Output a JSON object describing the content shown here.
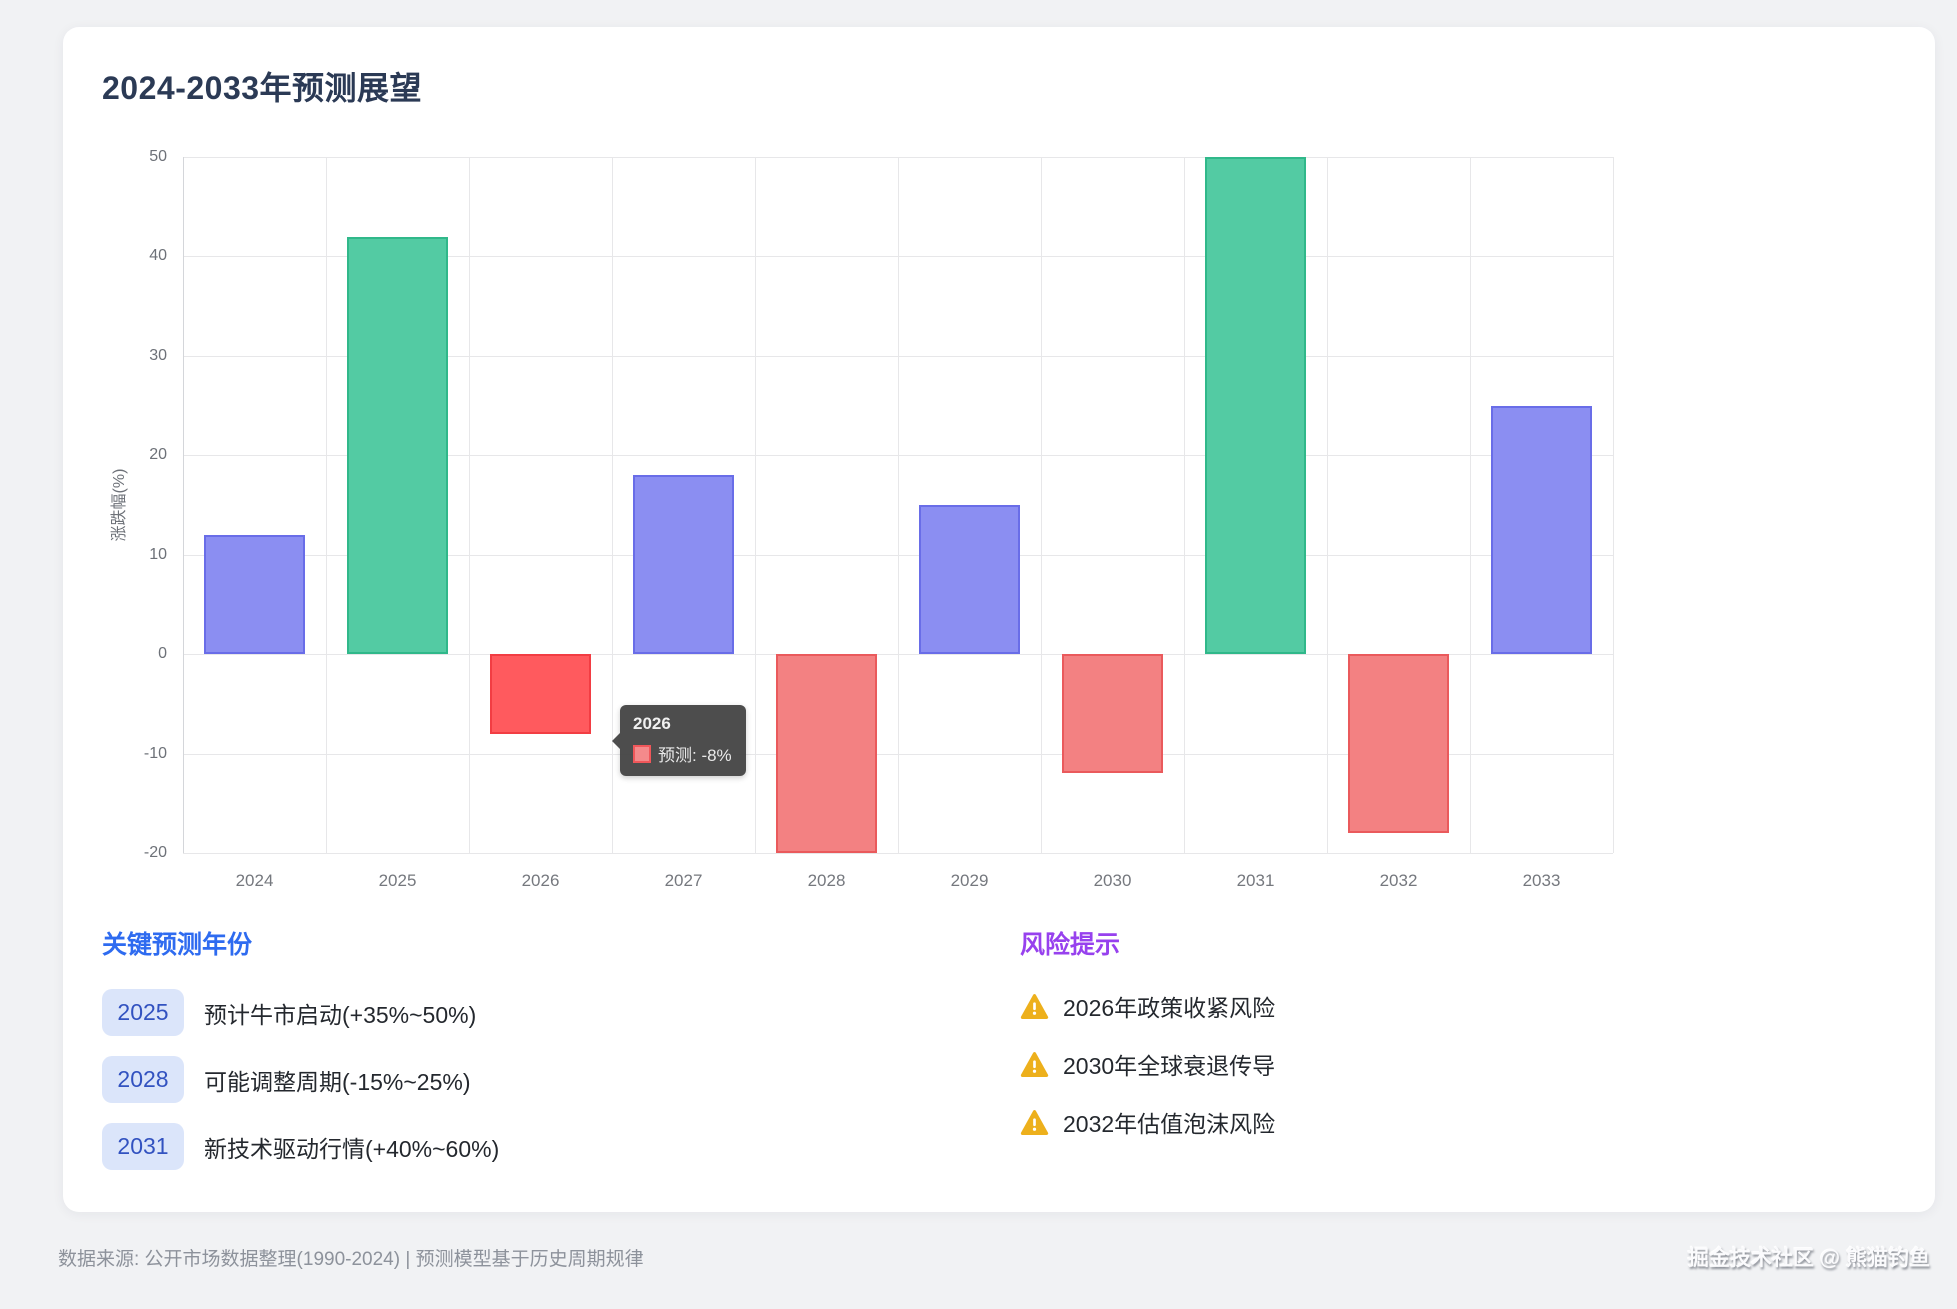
{
  "title": "2024-2033年预测展望",
  "chart_data": {
    "type": "bar",
    "title": "2024-2033年预测展望",
    "categories": [
      "2024",
      "2025",
      "2026",
      "2027",
      "2028",
      "2029",
      "2030",
      "2031",
      "2032",
      "2033"
    ],
    "series": [
      {
        "name": "预测",
        "values": [
          12,
          42,
          -8,
          18,
          -20,
          15,
          -12,
          50,
          -18,
          25
        ]
      }
    ],
    "bar_styles": [
      "purple",
      "green",
      "red_active",
      "purple",
      "red",
      "purple",
      "red",
      "green",
      "red",
      "purple"
    ],
    "xlabel": "",
    "ylabel": "涨跌幅(%)",
    "ylim": [
      -20,
      50
    ],
    "yticks": [
      50,
      40,
      30,
      20,
      10,
      0,
      -10,
      -20
    ],
    "grid": true,
    "legend": "none"
  },
  "tooltip": {
    "title": "2026",
    "series": "预测",
    "value_label": "预测: -8%"
  },
  "key_years": {
    "heading": "关键预测年份",
    "items": [
      {
        "year": "2025",
        "text": "预计牛市启动(+35%~50%)"
      },
      {
        "year": "2028",
        "text": "可能调整周期(-15%~25%)"
      },
      {
        "year": "2031",
        "text": "新技术驱动行情(+40%~60%)"
      }
    ]
  },
  "risks": {
    "heading": "风险提示",
    "items": [
      "2026年政策收紧风险",
      "2030年全球衰退传导",
      "2032年估值泡沫风险"
    ]
  },
  "footer": {
    "left": "数据来源: 公开市场数据整理(1990-2024) | 预测模型基于历史周期规律",
    "right": "掘金技术社区 @ 熊猫钓鱼"
  },
  "colors": {
    "page_bg": "#f1f2f4",
    "card_bg": "#ffffff",
    "title": "#2b3a55",
    "heading_blue": "#2e6bf0",
    "heading_purple": "#9741ee",
    "badge_bg": "#dbe5fa",
    "badge_text": "#3252c0",
    "warning": "#edb01c",
    "grid": "#e7e7e9",
    "axis_text": "#6d7178",
    "tooltip_bg": "rgba(64,64,64,0.93)",
    "palette": {
      "purple": {
        "fill": "#8b8ef2",
        "border": "#696de8"
      },
      "green": {
        "fill": "#53cba3",
        "border": "#30b88a"
      },
      "red": {
        "fill": "#f38182",
        "border": "#ea5a5c"
      },
      "red_active": {
        "fill": "#ff5a5e",
        "border": "#f23d43"
      }
    }
  }
}
